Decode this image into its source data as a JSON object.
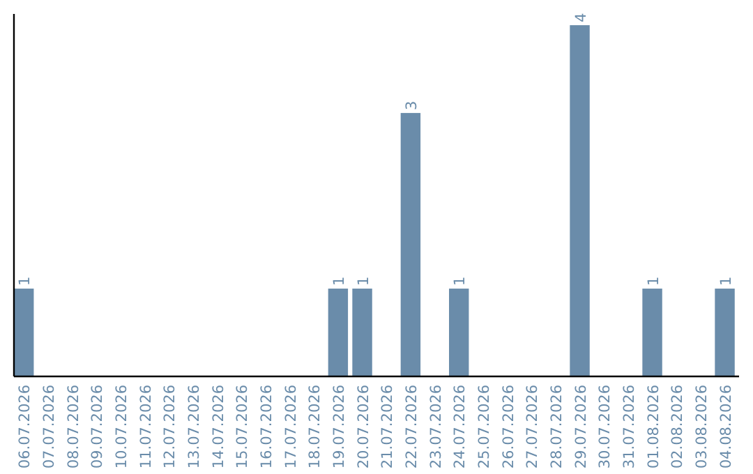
{
  "chart_data": {
    "type": "bar",
    "categories": [
      "06.07.2026",
      "07.07.2026",
      "08.07.2026",
      "09.07.2026",
      "10.07.2026",
      "11.07.2026",
      "12.07.2026",
      "13.07.2026",
      "14.07.2026",
      "15.07.2026",
      "16.07.2026",
      "17.07.2026",
      "18.07.2026",
      "19.07.2026",
      "20.07.2026",
      "21.07.2026",
      "22.07.2026",
      "23.07.2026",
      "24.07.2026",
      "25.07.2026",
      "26.07.2026",
      "27.07.2026",
      "28.07.2026",
      "29.07.2026",
      "30.07.2026",
      "31.07.2026",
      "01.08.2026",
      "02.08.2026",
      "03.08.2026",
      "04.08.2026"
    ],
    "values": [
      1,
      0,
      0,
      0,
      0,
      0,
      0,
      0,
      0,
      0,
      0,
      0,
      0,
      1,
      1,
      0,
      3,
      0,
      1,
      0,
      0,
      0,
      0,
      4,
      0,
      0,
      1,
      0,
      0,
      1
    ],
    "value_labels": [
      "1",
      null,
      null,
      null,
      null,
      null,
      null,
      null,
      null,
      null,
      null,
      null,
      null,
      "1",
      "1",
      null,
      "3",
      null,
      "1",
      null,
      null,
      null,
      null,
      "4",
      null,
      null,
      "1",
      null,
      null,
      "1"
    ],
    "color": "#6a8caa",
    "tick_labels": "x"
  }
}
